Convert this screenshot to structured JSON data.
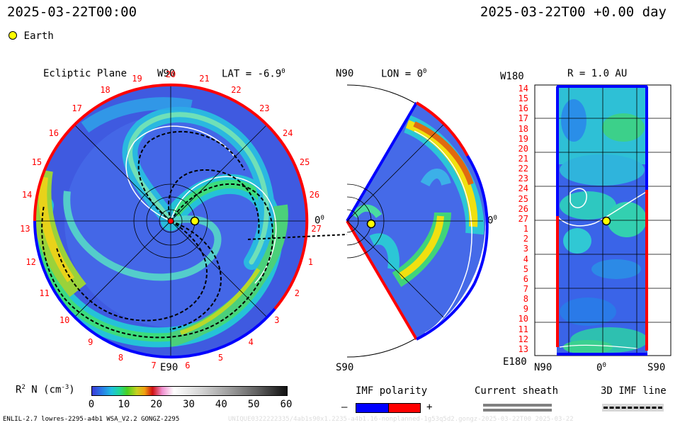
{
  "header": {
    "timestamp_left": "2025-03-22T00:00",
    "timestamp_right": "2025-03-22T00 +0.00 day",
    "legend_earth": "Earth"
  },
  "ecliptic_panel": {
    "title": "Ecliptic Plane",
    "top_label": "W90",
    "lat_label": "LAT = -6.9",
    "lat_deg": "0",
    "right_label": "0",
    "right_deg": "0",
    "bottom_label": "E90",
    "rim_numbers": [
      "20",
      "21",
      "22",
      "23",
      "24",
      "25",
      "26",
      "27",
      "1",
      "2",
      "3",
      "4",
      "5",
      "6",
      "7",
      "8",
      "9",
      "10",
      "11",
      "12",
      "13",
      "14",
      "15",
      "16",
      "17",
      "18",
      "19"
    ]
  },
  "meridional_panel": {
    "top_label": "N90",
    "lon_label": "LON = 0",
    "lon_deg": "0",
    "right_label": "0",
    "right_deg": "0",
    "bottom_label": "S90"
  },
  "map_panel": {
    "top_left": "W180",
    "r_label": "R = 1.0 AU",
    "bottom_left": "E180",
    "x_left": "N90",
    "x_mid": "0",
    "x_mid_deg": "0",
    "x_right": "S90",
    "lat_labels": [
      "14",
      "15",
      "16",
      "17",
      "18",
      "19",
      "20",
      "21",
      "22",
      "23",
      "24",
      "25",
      "26",
      "27",
      "1",
      "2",
      "3",
      "4",
      "5",
      "6",
      "7",
      "8",
      "9",
      "10",
      "11",
      "12",
      "13"
    ]
  },
  "colorbar": {
    "label_prefix": "R",
    "label_sup": "2",
    "label_mid": " N (cm",
    "label_unit_sup": "-3",
    "label_suffix": ")",
    "ticks": [
      "0",
      "10",
      "20",
      "30",
      "40",
      "50",
      "60"
    ]
  },
  "legends": {
    "imf_polarity": "IMF polarity",
    "minus": "–",
    "plus": "+",
    "current_sheath": "Current sheath",
    "imf_line": "3D IMF line"
  },
  "footer": {
    "model_info": "ENLIL-2.7 lowres-2295-a4b1 WSA_V2.2 GONGZ-2295",
    "watermark": "UNIQUE0322222335/4ab1s90x1.2235-a4b1.16-nonplanned-1g53q5d2.gongz-2025-03-22T00   2025-03-22"
  },
  "colors": {
    "background": "#ffffff",
    "polarity_positive": "#ff0000",
    "polarity_negative": "#0000ff",
    "earth": "#ffff00"
  }
}
